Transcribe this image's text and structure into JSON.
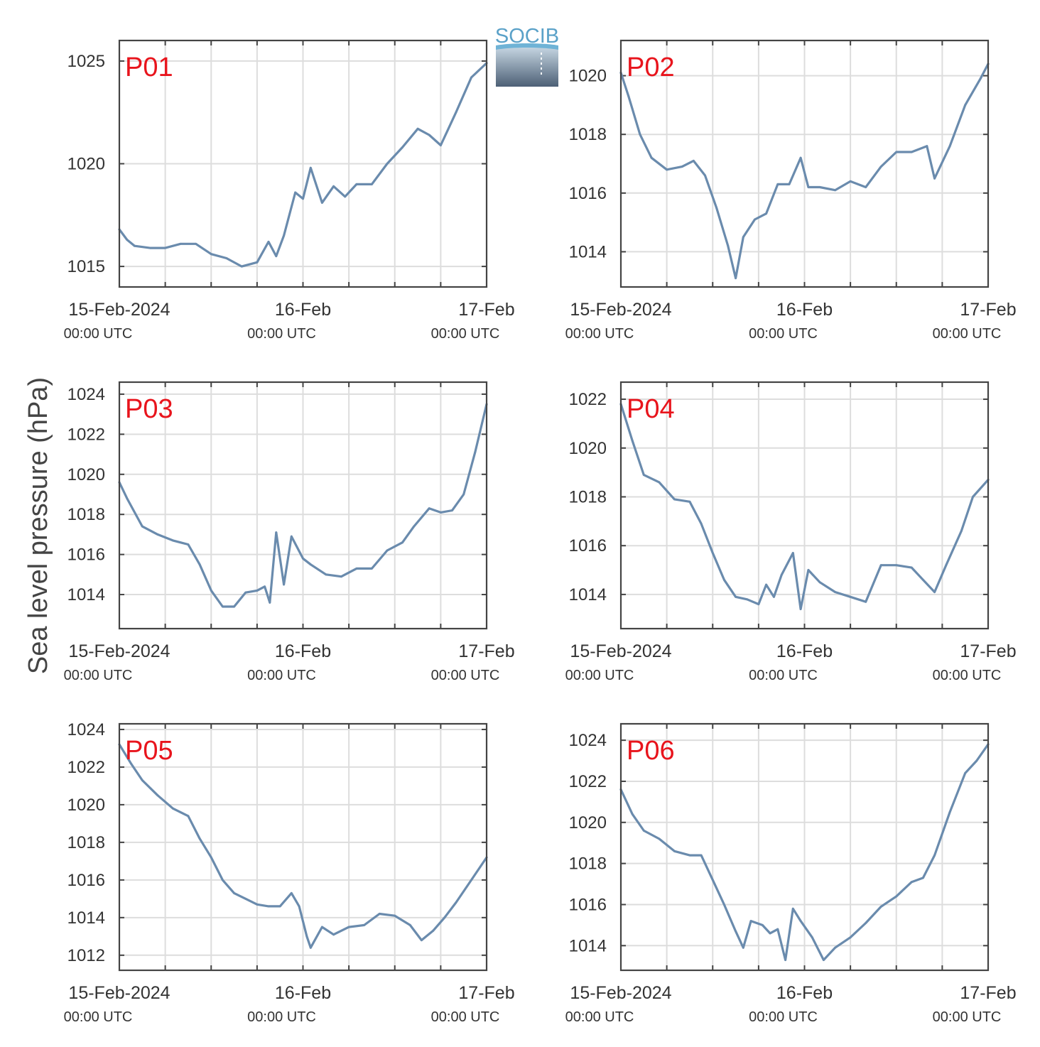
{
  "figure": {
    "ylabel": "Sea level pressure (hPa)",
    "logo_text": "SOCIB",
    "colors": {
      "line": "#6a8bad",
      "station_label": "#e8141c",
      "grid": "#dddddd",
      "axis": "#444444",
      "text": "#333333"
    },
    "x_ticks": [
      {
        "date": "15-Feb-2024",
        "time": "00:00 UTC"
      },
      {
        "date": "16-Feb",
        "time": "00:00 UTC"
      },
      {
        "date": "17-Feb",
        "time": "00:00 UTC"
      }
    ]
  },
  "chart_data": [
    {
      "type": "line",
      "panel": "P01",
      "label": "P01",
      "x_range": [
        "2024-02-15T00:00",
        "2024-02-17T00:00"
      ],
      "ylim": [
        1014,
        1026
      ],
      "yticks": [
        1015,
        1020,
        1025
      ],
      "x": [
        "2024-02-15T00:00",
        "2024-02-15T01:00",
        "2024-02-15T02:00",
        "2024-02-15T04:00",
        "2024-02-15T06:00",
        "2024-02-15T08:00",
        "2024-02-15T10:00",
        "2024-02-15T12:00",
        "2024-02-15T14:00",
        "2024-02-15T16:00",
        "2024-02-15T18:00",
        "2024-02-15T19:30",
        "2024-02-15T20:30",
        "2024-02-15T21:30",
        "2024-02-15T23:00",
        "2024-02-16T00:00",
        "2024-02-16T01:00",
        "2024-02-16T02:30",
        "2024-02-16T04:00",
        "2024-02-16T05:30",
        "2024-02-16T07:00",
        "2024-02-16T09:00",
        "2024-02-16T11:00",
        "2024-02-16T13:00",
        "2024-02-16T15:00",
        "2024-02-16T16:30",
        "2024-02-16T18:00",
        "2024-02-16T20:00",
        "2024-02-16T22:00",
        "2024-02-17T00:00"
      ],
      "values": [
        1016.8,
        1016.3,
        1016.0,
        1015.9,
        1015.9,
        1016.1,
        1016.1,
        1015.6,
        1015.4,
        1015.0,
        1015.2,
        1016.2,
        1015.5,
        1016.5,
        1018.6,
        1018.3,
        1019.8,
        1018.1,
        1018.9,
        1018.4,
        1019.0,
        1019.0,
        1020.0,
        1020.8,
        1021.7,
        1021.4,
        1020.9,
        1022.5,
        1024.2,
        1024.9
      ]
    },
    {
      "type": "line",
      "panel": "P02",
      "label": "P02",
      "x_range": [
        "2024-02-15T00:00",
        "2024-02-17T00:00"
      ],
      "ylim": [
        1012.8,
        1021.2
      ],
      "yticks": [
        1014,
        1016,
        1018,
        1020
      ],
      "x": [
        "2024-02-15T00:00",
        "2024-02-15T01:00",
        "2024-02-15T02:30",
        "2024-02-15T04:00",
        "2024-02-15T06:00",
        "2024-02-15T08:00",
        "2024-02-15T09:30",
        "2024-02-15T11:00",
        "2024-02-15T12:30",
        "2024-02-15T14:00",
        "2024-02-15T15:00",
        "2024-02-15T16:00",
        "2024-02-15T17:30",
        "2024-02-15T19:00",
        "2024-02-15T20:30",
        "2024-02-15T22:00",
        "2024-02-15T23:30",
        "2024-02-16T00:30",
        "2024-02-16T02:00",
        "2024-02-16T04:00",
        "2024-02-16T06:00",
        "2024-02-16T08:00",
        "2024-02-16T10:00",
        "2024-02-16T12:00",
        "2024-02-16T14:00",
        "2024-02-16T16:00",
        "2024-02-16T17:00",
        "2024-02-16T19:00",
        "2024-02-16T21:00",
        "2024-02-16T23:00",
        "2024-02-17T00:00"
      ],
      "values": [
        1020.1,
        1019.3,
        1018.0,
        1017.2,
        1016.8,
        1016.9,
        1017.1,
        1016.6,
        1015.5,
        1014.2,
        1013.1,
        1014.5,
        1015.1,
        1015.3,
        1016.3,
        1016.3,
        1017.2,
        1016.2,
        1016.2,
        1016.1,
        1016.4,
        1016.2,
        1016.9,
        1017.4,
        1017.4,
        1017.6,
        1016.5,
        1017.6,
        1019.0,
        1019.9,
        1020.4
      ]
    },
    {
      "type": "line",
      "panel": "P03",
      "label": "P03",
      "x_range": [
        "2024-02-15T00:00",
        "2024-02-17T00:00"
      ],
      "ylim": [
        1012.3,
        1024.6
      ],
      "yticks": [
        1014,
        1016,
        1018,
        1020,
        1022,
        1024
      ],
      "x": [
        "2024-02-15T00:00",
        "2024-02-15T01:00",
        "2024-02-15T03:00",
        "2024-02-15T05:00",
        "2024-02-15T07:00",
        "2024-02-15T09:00",
        "2024-02-15T10:30",
        "2024-02-15T12:00",
        "2024-02-15T13:30",
        "2024-02-15T15:00",
        "2024-02-15T16:30",
        "2024-02-15T18:00",
        "2024-02-15T19:00",
        "2024-02-15T19:40",
        "2024-02-15T20:30",
        "2024-02-15T21:30",
        "2024-02-15T22:30",
        "2024-02-16T00:00",
        "2024-02-16T01:00",
        "2024-02-16T03:00",
        "2024-02-16T05:00",
        "2024-02-16T07:00",
        "2024-02-16T09:00",
        "2024-02-16T11:00",
        "2024-02-16T13:00",
        "2024-02-16T14:30",
        "2024-02-16T16:30",
        "2024-02-16T18:00",
        "2024-02-16T19:30",
        "2024-02-16T21:00",
        "2024-02-16T22:30",
        "2024-02-17T00:00"
      ],
      "values": [
        1019.6,
        1018.8,
        1017.4,
        1017.0,
        1016.7,
        1016.5,
        1015.5,
        1014.2,
        1013.4,
        1013.4,
        1014.1,
        1014.2,
        1014.4,
        1013.6,
        1017.1,
        1014.5,
        1016.9,
        1015.8,
        1015.5,
        1015.0,
        1014.9,
        1015.3,
        1015.3,
        1016.2,
        1016.6,
        1017.4,
        1018.3,
        1018.1,
        1018.2,
        1019.0,
        1021.1,
        1023.5
      ]
    },
    {
      "type": "line",
      "panel": "P04",
      "label": "P04",
      "x_range": [
        "2024-02-15T00:00",
        "2024-02-17T00:00"
      ],
      "ylim": [
        1012.6,
        1022.7
      ],
      "yticks": [
        1014,
        1016,
        1018,
        1020,
        1022
      ],
      "x": [
        "2024-02-15T00:00",
        "2024-02-15T01:30",
        "2024-02-15T03:00",
        "2024-02-15T05:00",
        "2024-02-15T07:00",
        "2024-02-15T09:00",
        "2024-02-15T10:30",
        "2024-02-15T12:00",
        "2024-02-15T13:30",
        "2024-02-15T15:00",
        "2024-02-15T16:30",
        "2024-02-15T18:00",
        "2024-02-15T19:00",
        "2024-02-15T20:00",
        "2024-02-15T21:00",
        "2024-02-15T22:30",
        "2024-02-15T23:30",
        "2024-02-16T00:30",
        "2024-02-16T02:00",
        "2024-02-16T04:00",
        "2024-02-16T06:00",
        "2024-02-16T08:00",
        "2024-02-16T10:00",
        "2024-02-16T12:00",
        "2024-02-16T14:00",
        "2024-02-16T15:30",
        "2024-02-16T17:00",
        "2024-02-16T18:30",
        "2024-02-16T20:30",
        "2024-02-16T22:00",
        "2024-02-17T00:00"
      ],
      "values": [
        1021.8,
        1020.3,
        1018.9,
        1018.6,
        1017.9,
        1017.8,
        1016.9,
        1015.7,
        1014.6,
        1013.9,
        1013.8,
        1013.6,
        1014.4,
        1013.9,
        1014.8,
        1015.7,
        1013.4,
        1015.0,
        1014.5,
        1014.1,
        1013.9,
        1013.7,
        1015.2,
        1015.2,
        1015.1,
        1014.6,
        1014.1,
        1015.2,
        1016.6,
        1018.0,
        1018.7
      ]
    },
    {
      "type": "line",
      "panel": "P05",
      "label": "P05",
      "x_range": [
        "2024-02-15T00:00",
        "2024-02-17T00:00"
      ],
      "ylim": [
        1011.2,
        1024.3
      ],
      "yticks": [
        1012,
        1014,
        1016,
        1018,
        1020,
        1022,
        1024
      ],
      "x": [
        "2024-02-15T00:00",
        "2024-02-15T01:30",
        "2024-02-15T03:00",
        "2024-02-15T05:00",
        "2024-02-15T07:00",
        "2024-02-15T09:00",
        "2024-02-15T10:30",
        "2024-02-15T12:00",
        "2024-02-15T13:30",
        "2024-02-15T15:00",
        "2024-02-15T16:30",
        "2024-02-15T18:00",
        "2024-02-15T19:30",
        "2024-02-15T21:00",
        "2024-02-15T22:30",
        "2024-02-15T23:30",
        "2024-02-16T00:30",
        "2024-02-16T01:00",
        "2024-02-16T02:30",
        "2024-02-16T04:00",
        "2024-02-16T06:00",
        "2024-02-16T08:00",
        "2024-02-16T10:00",
        "2024-02-16T12:00",
        "2024-02-16T14:00",
        "2024-02-16T15:30",
        "2024-02-16T17:00",
        "2024-02-16T18:30",
        "2024-02-16T20:00",
        "2024-02-16T22:00",
        "2024-02-17T00:00"
      ],
      "values": [
        1023.2,
        1022.2,
        1021.3,
        1020.5,
        1019.8,
        1019.4,
        1018.2,
        1017.2,
        1016.0,
        1015.3,
        1015.0,
        1014.7,
        1014.6,
        1014.6,
        1015.3,
        1014.6,
        1013.0,
        1012.4,
        1013.5,
        1013.1,
        1013.5,
        1013.6,
        1014.2,
        1014.1,
        1013.6,
        1012.8,
        1013.3,
        1014.0,
        1014.8,
        1016.0,
        1017.2
      ]
    },
    {
      "type": "line",
      "panel": "P06",
      "label": "P06",
      "x_range": [
        "2024-02-15T00:00",
        "2024-02-17T00:00"
      ],
      "ylim": [
        1012.8,
        1024.8
      ],
      "yticks": [
        1014,
        1016,
        1018,
        1020,
        1022,
        1024
      ],
      "x": [
        "2024-02-15T00:00",
        "2024-02-15T01:30",
        "2024-02-15T03:00",
        "2024-02-15T05:00",
        "2024-02-15T07:00",
        "2024-02-15T09:00",
        "2024-02-15T10:30",
        "2024-02-15T12:00",
        "2024-02-15T13:30",
        "2024-02-15T15:00",
        "2024-02-15T16:00",
        "2024-02-15T17:00",
        "2024-02-15T18:30",
        "2024-02-15T19:30",
        "2024-02-15T20:30",
        "2024-02-15T21:30",
        "2024-02-15T22:30",
        "2024-02-15T23:30",
        "2024-02-16T01:00",
        "2024-02-16T02:30",
        "2024-02-16T04:00",
        "2024-02-16T06:00",
        "2024-02-16T08:00",
        "2024-02-16T10:00",
        "2024-02-16T12:00",
        "2024-02-16T14:00",
        "2024-02-16T15:30",
        "2024-02-16T17:00",
        "2024-02-16T19:00",
        "2024-02-16T21:00",
        "2024-02-16T22:30",
        "2024-02-17T00:00"
      ],
      "values": [
        1021.6,
        1020.4,
        1019.6,
        1019.2,
        1018.6,
        1018.4,
        1018.4,
        1017.2,
        1016.0,
        1014.7,
        1013.9,
        1015.2,
        1015.0,
        1014.6,
        1014.8,
        1013.3,
        1015.8,
        1015.2,
        1014.4,
        1013.3,
        1013.9,
        1014.4,
        1015.1,
        1015.9,
        1016.4,
        1017.1,
        1017.3,
        1018.4,
        1020.5,
        1022.4,
        1023.0,
        1023.8
      ]
    }
  ]
}
